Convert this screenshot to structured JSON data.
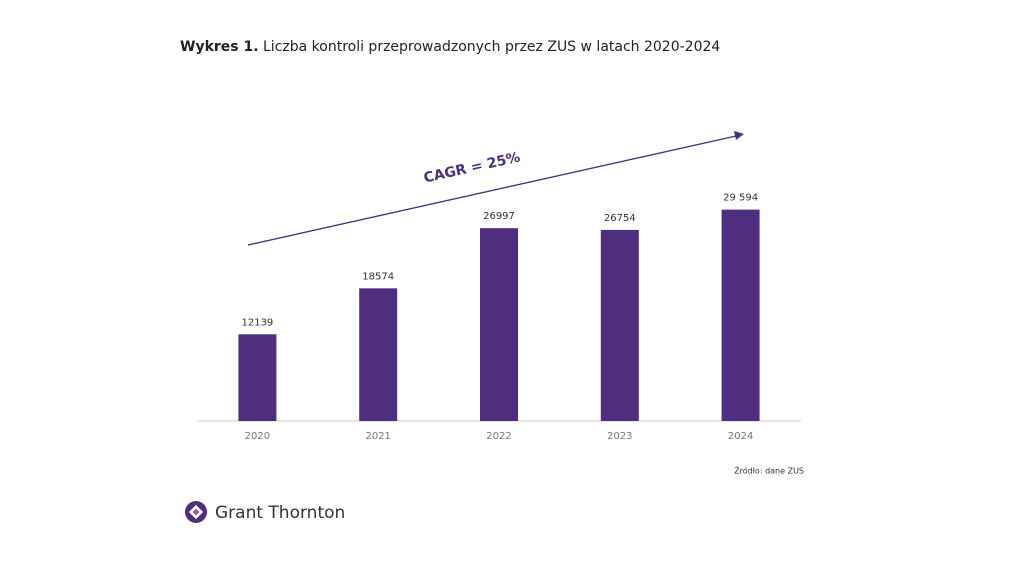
{
  "chart_data": {
    "type": "bar",
    "title_prefix": "Wykres 1.",
    "title": "Liczba kontroli przeprowadzonych przez ZUS w latach 2020-2024",
    "annotation": "CAGR = 25%",
    "source": "Źródło: dane ZUS",
    "brand": "Grant Thornton",
    "categories": [
      "2020",
      "2021",
      "2022",
      "2023",
      "2024"
    ],
    "values": [
      12139,
      18574,
      26997,
      26754,
      29594
    ],
    "value_labels": [
      "12139",
      "18574",
      "26997",
      "26754",
      "29 594"
    ],
    "color": "#4f2d7f",
    "ylim": [
      0,
      35000
    ]
  }
}
